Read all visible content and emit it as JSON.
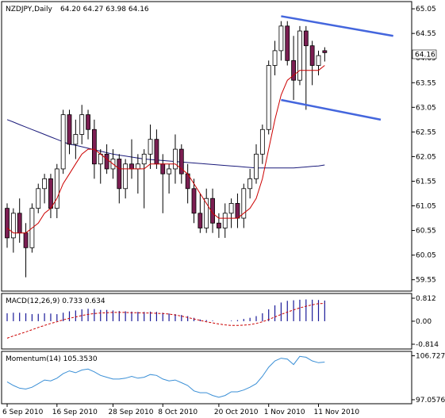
{
  "chart_panel": {
    "symbol_label": "NZDJPY,Daily",
    "ohlc_label": "64.20 64.27 63.98 64.16",
    "current_price_tag": "64.16",
    "price_ticks": [
      "65.05",
      "64.55",
      "64.05",
      "63.55",
      "63.05",
      "62.55",
      "62.05",
      "61.55",
      "61.05",
      "60.55",
      "60.05",
      "59.55"
    ],
    "date_ticks": [
      "6 Sep 2010",
      "16 Sep 2010",
      "28 Sep 2010",
      "8 Oct 2010",
      "20 Oct 2010",
      "1 Nov 2010",
      "11 Nov 2010"
    ]
  },
  "macd_panel": {
    "label": "MACD(12,26,9) 0.733 0.634",
    "ticks": [
      "0.812",
      "0.00",
      "-0.814"
    ]
  },
  "momentum_panel": {
    "label": "Momentum(14) 105.3530",
    "ticks": [
      "106.7278",
      "97.0576"
    ]
  },
  "colors": {
    "bull_candle": "#ffffff",
    "bear_candle": "#7b1e52",
    "wick": "#000000",
    "fast_ma": "#cc0000",
    "slow_ma": "#1a1a7a",
    "channel": "#4466dd",
    "macd_hist": "#1a1a99",
    "macd_signal": "#cc0000",
    "momentum": "#3a8fd6"
  },
  "chart_data": [
    {
      "type": "candlestick",
      "title": "NZDJPY,Daily",
      "ylim": [
        59.4,
        65.1
      ],
      "y_ticks": [
        65.05,
        64.55,
        64.05,
        63.55,
        63.05,
        62.55,
        62.05,
        61.55,
        61.05,
        60.55,
        60.05,
        59.55
      ],
      "x_tick_labels": [
        "6 Sep 2010",
        "16 Sep 2010",
        "28 Sep 2010",
        "8 Oct 2010",
        "20 Oct 2010",
        "1 Nov 2010",
        "11 Nov 2010"
      ],
      "ohlc": [
        [
          61.0,
          61.1,
          60.2,
          60.4
        ],
        [
          60.4,
          61.0,
          60.1,
          60.9
        ],
        [
          60.9,
          61.2,
          60.3,
          60.5
        ],
        [
          60.5,
          60.7,
          59.6,
          60.2
        ],
        [
          60.2,
          61.1,
          60.1,
          61.0
        ],
        [
          61.0,
          61.5,
          60.9,
          61.4
        ],
        [
          61.4,
          61.7,
          61.1,
          61.6
        ],
        [
          61.6,
          61.7,
          60.8,
          61.0
        ],
        [
          61.0,
          61.9,
          60.8,
          61.8
        ],
        [
          61.8,
          63.0,
          61.7,
          62.9
        ],
        [
          62.9,
          63.0,
          62.1,
          62.3
        ],
        [
          62.3,
          62.8,
          62.0,
          62.5
        ],
        [
          62.5,
          63.1,
          62.3,
          62.9
        ],
        [
          62.9,
          63.0,
          62.4,
          62.6
        ],
        [
          62.6,
          62.8,
          61.6,
          61.9
        ],
        [
          61.9,
          62.2,
          61.5,
          62.1
        ],
        [
          62.1,
          62.3,
          61.7,
          61.8
        ],
        [
          61.8,
          62.2,
          61.6,
          62.0
        ],
        [
          62.0,
          62.1,
          61.1,
          61.4
        ],
        [
          61.4,
          62.0,
          61.2,
          61.9
        ],
        [
          61.9,
          62.4,
          61.6,
          61.8
        ],
        [
          61.8,
          62.1,
          61.3,
          61.9
        ],
        [
          61.9,
          62.2,
          61.0,
          62.1
        ],
        [
          62.1,
          62.7,
          61.8,
          62.4
        ],
        [
          62.4,
          62.6,
          61.8,
          61.9
        ],
        [
          61.9,
          62.1,
          60.9,
          61.7
        ],
        [
          61.7,
          61.9,
          61.3,
          61.8
        ],
        [
          61.8,
          62.5,
          61.5,
          62.2
        ],
        [
          62.2,
          62.3,
          61.5,
          61.7
        ],
        [
          61.7,
          61.9,
          61.1,
          61.4
        ],
        [
          61.4,
          61.6,
          60.7,
          60.9
        ],
        [
          60.9,
          61.3,
          60.5,
          60.6
        ],
        [
          60.6,
          61.4,
          60.5,
          61.2
        ],
        [
          61.2,
          61.4,
          60.5,
          60.7
        ],
        [
          60.7,
          60.9,
          60.4,
          60.6
        ],
        [
          60.6,
          61.1,
          60.4,
          60.9
        ],
        [
          60.9,
          61.2,
          60.6,
          61.1
        ],
        [
          61.1,
          61.3,
          60.6,
          60.8
        ],
        [
          60.8,
          61.5,
          60.6,
          61.4
        ],
        [
          61.4,
          61.8,
          61.2,
          61.6
        ],
        [
          61.6,
          62.3,
          61.5,
          62.1
        ],
        [
          62.1,
          62.7,
          61.9,
          62.6
        ],
        [
          62.6,
          64.0,
          62.5,
          63.9
        ],
        [
          63.9,
          64.4,
          63.7,
          64.2
        ],
        [
          64.2,
          64.8,
          64.0,
          64.7
        ],
        [
          64.7,
          64.8,
          63.9,
          64.0
        ],
        [
          64.0,
          64.5,
          63.2,
          63.6
        ],
        [
          63.6,
          64.7,
          63.5,
          64.6
        ],
        [
          64.6,
          64.7,
          63.0,
          64.3
        ],
        [
          64.3,
          64.4,
          63.5,
          63.9
        ],
        [
          63.9,
          64.2,
          63.7,
          64.1
        ],
        [
          64.2,
          64.27,
          63.98,
          64.16
        ]
      ],
      "fast_ma": [
        60.6,
        60.5,
        60.5,
        60.5,
        60.6,
        60.7,
        60.9,
        61.0,
        61.2,
        61.5,
        61.7,
        61.9,
        62.1,
        62.2,
        62.2,
        62.1,
        62.0,
        61.9,
        61.8,
        61.8,
        61.8,
        61.8,
        61.8,
        61.9,
        61.9,
        61.9,
        61.9,
        61.9,
        61.8,
        61.7,
        61.5,
        61.3,
        61.1,
        60.9,
        60.8,
        60.8,
        60.8,
        60.8,
        60.9,
        61.0,
        61.2,
        61.6,
        62.2,
        62.8,
        63.3,
        63.6,
        63.7,
        63.8,
        63.8,
        63.8,
        63.8,
        63.9
      ],
      "slow_ma": [
        62.8,
        62.75,
        62.7,
        62.65,
        62.6,
        62.55,
        62.5,
        62.45,
        62.4,
        62.35,
        62.3,
        62.28,
        62.25,
        62.22,
        62.19,
        62.16,
        62.13,
        62.1,
        62.08,
        62.06,
        62.04,
        62.02,
        62.0,
        61.99,
        61.98,
        61.97,
        61.96,
        61.95,
        61.94,
        61.93,
        61.92,
        61.91,
        61.9,
        61.89,
        61.88,
        61.87,
        61.86,
        61.85,
        61.84,
        61.83,
        61.82,
        61.82,
        61.82,
        61.82,
        61.82,
        61.82,
        61.82,
        61.83,
        61.84,
        61.85,
        61.86,
        61.88
      ],
      "channel_lines": [
        {
          "from": [
            44,
            64.9
          ],
          "to": [
            62,
            64.5
          ]
        },
        {
          "from": [
            44,
            63.2
          ],
          "to": [
            60,
            62.8
          ]
        }
      ]
    },
    {
      "type": "bar",
      "title": "MACD(12,26,9) 0.733 0.634",
      "ylim": [
        -0.814,
        0.812
      ],
      "histogram": [
        0.28,
        0.3,
        0.3,
        0.28,
        0.25,
        0.26,
        0.28,
        0.27,
        0.25,
        0.3,
        0.35,
        0.38,
        0.42,
        0.44,
        0.43,
        0.4,
        0.4,
        0.38,
        0.36,
        0.35,
        0.34,
        0.33,
        0.33,
        0.34,
        0.33,
        0.3,
        0.27,
        0.25,
        0.22,
        0.18,
        0.12,
        0.06,
        0.04,
        0.02,
        0.0,
        0.0,
        0.02,
        0.04,
        0.08,
        0.12,
        0.18,
        0.28,
        0.42,
        0.56,
        0.66,
        0.72,
        0.74,
        0.76,
        0.77,
        0.76,
        0.75,
        0.73
      ],
      "signal": [
        -0.6,
        -0.52,
        -0.45,
        -0.38,
        -0.3,
        -0.22,
        -0.15,
        -0.08,
        -0.02,
        0.05,
        0.1,
        0.15,
        0.2,
        0.24,
        0.27,
        0.29,
        0.3,
        0.31,
        0.31,
        0.31,
        0.3,
        0.3,
        0.29,
        0.29,
        0.28,
        0.27,
        0.25,
        0.22,
        0.18,
        0.13,
        0.08,
        0.03,
        -0.02,
        -0.06,
        -0.1,
        -0.13,
        -0.15,
        -0.15,
        -0.14,
        -0.12,
        -0.08,
        -0.02,
        0.06,
        0.15,
        0.24,
        0.32,
        0.4,
        0.47,
        0.53,
        0.58,
        0.62,
        0.63
      ]
    },
    {
      "type": "line",
      "title": "Momentum(14) 105.3530",
      "ylim": [
        96.7,
        107.0
      ],
      "values": [
        101.0,
        100.2,
        99.6,
        99.4,
        99.8,
        100.6,
        101.4,
        101.2,
        101.8,
        102.8,
        103.4,
        103.0,
        103.6,
        103.8,
        103.2,
        102.4,
        102.0,
        101.6,
        101.6,
        101.8,
        102.2,
        101.8,
        102.0,
        102.6,
        102.4,
        101.6,
        101.2,
        101.4,
        100.8,
        100.2,
        99.0,
        98.6,
        98.6,
        98.0,
        97.6,
        98.0,
        98.8,
        98.8,
        99.2,
        99.8,
        100.6,
        102.2,
        104.2,
        105.6,
        106.2,
        106.0,
        104.8,
        106.6,
        106.4,
        105.6,
        105.2,
        105.35
      ]
    }
  ]
}
